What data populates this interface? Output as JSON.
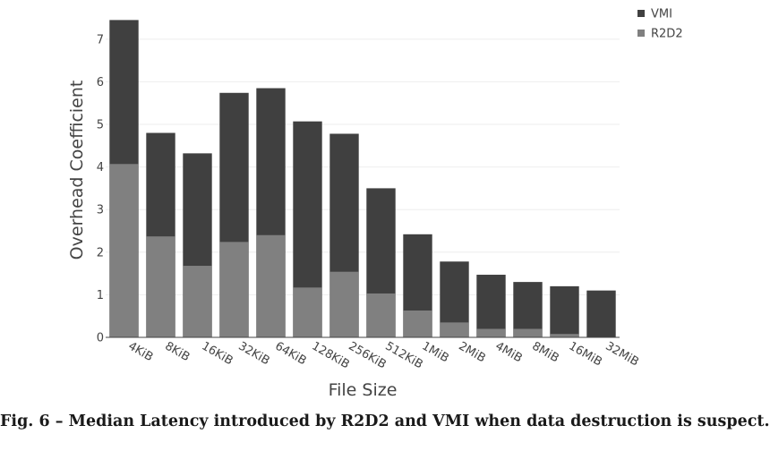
{
  "chart_data": {
    "type": "bar",
    "stacked": false,
    "overlay": true,
    "categories": [
      "4KiB",
      "8KiB",
      "16KiB",
      "32KiB",
      "64KiB",
      "128KiB",
      "256KiB",
      "512KiB",
      "1MiB",
      "2MiB",
      "4MiB",
      "8MiB",
      "16MiB",
      "32MiB"
    ],
    "series": [
      {
        "name": "VMI",
        "color": "#404040",
        "values": [
          7.45,
          4.8,
          4.32,
          5.74,
          5.85,
          5.07,
          4.78,
          3.5,
          2.42,
          1.78,
          1.47,
          1.3,
          1.2,
          1.1
        ]
      },
      {
        "name": "R2D2",
        "color": "#808080",
        "values": [
          4.07,
          2.37,
          1.68,
          2.24,
          2.4,
          1.17,
          1.54,
          1.03,
          0.63,
          0.35,
          0.2,
          0.2,
          0.08,
          0
        ]
      }
    ],
    "xlabel": "File Size",
    "ylabel": "Overhead Coefficient",
    "ylim": [
      0,
      7.5
    ],
    "yticks": [
      0,
      1,
      2,
      3,
      4,
      5,
      6,
      7
    ],
    "grid": true,
    "legend": "top-right"
  },
  "caption": "Fig. 6 – Median Latency introduced by R2D2 and VMI when data destruction is suspect."
}
